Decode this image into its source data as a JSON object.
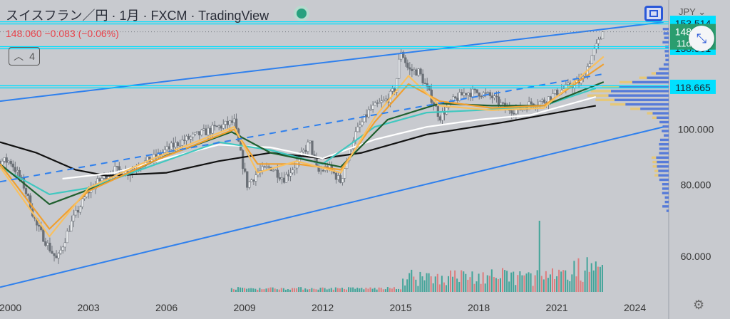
{
  "header": {
    "symbol_title": "スイスフラン／円 · 1月 · FXCM · TradingView",
    "change_text": "148.060  −0.083 (−0.06%)",
    "collapse_count": "4",
    "currency_label": "JPY"
  },
  "icons": {
    "fullscreen": "fullscreen-icon",
    "minimize": "minimize-arrows-icon",
    "settings": "gear-icon",
    "chevron": "chevron-down-icon"
  },
  "colors": {
    "background": "#c8cacf",
    "up_candle": "#6b7077",
    "channel": "#2f80ed",
    "hline": "#00e0ff",
    "price_tag": "#2a9d6f",
    "ma_orange": "#f0a030",
    "ma_lightorange": "#f8c060",
    "ma_darkgreen": "#1f5f2e",
    "ma_teal": "#40c8c0",
    "ma_white": "#ffffff",
    "ma_black": "#111111",
    "volume_up": "#2a9d8f",
    "volume_down": "#e07070",
    "profile": "#4a72d8",
    "profile_alt": "#e8c870"
  },
  "chart_data": {
    "type": "candlestick",
    "y_scale": "log",
    "ylim": [
      52,
      158
    ],
    "xlim": [
      1999.6,
      2025.3
    ],
    "x_ticks": [
      "2000",
      "2003",
      "2006",
      "2009",
      "2012",
      "2015",
      "2018",
      "2021",
      "2024"
    ],
    "y_ticks": [
      "60.000",
      "80.000",
      "100.000"
    ],
    "horizontal_levels": [
      {
        "value": 153.5,
        "label": "153.514"
      },
      {
        "value": 138.901,
        "label": "138.901"
      },
      {
        "value": 118.665,
        "label": "118.665"
      }
    ],
    "last_price": {
      "value": 148.06,
      "label": "148.060",
      "countdown": "11d 15h"
    },
    "channel": {
      "upper": [
        [
          1999.6,
          112
        ],
        [
          2025.1,
          154
        ]
      ],
      "lower": [
        [
          1999.6,
          53
        ],
        [
          2025.1,
          101
        ]
      ],
      "mid_dashed": [
        [
          1999.6,
          81
        ],
        [
          2022.8,
          125
        ]
      ]
    },
    "close_path": [
      [
        2000.0,
        88
      ],
      [
        2000.5,
        80
      ],
      [
        2001.0,
        68
      ],
      [
        2001.5,
        62
      ],
      [
        2001.8,
        59
      ],
      [
        2002.3,
        68
      ],
      [
        2003.0,
        78
      ],
      [
        2003.5,
        82
      ],
      [
        2004.0,
        85
      ],
      [
        2004.5,
        84
      ],
      [
        2005.0,
        87
      ],
      [
        2005.5,
        89
      ],
      [
        2006.0,
        92
      ],
      [
        2006.5,
        95
      ],
      [
        2007.0,
        97
      ],
      [
        2007.5,
        99
      ],
      [
        2008.0,
        101
      ],
      [
        2008.6,
        103
      ],
      [
        2008.9,
        88
      ],
      [
        2009.1,
        80
      ],
      [
        2009.5,
        84
      ],
      [
        2010.0,
        86
      ],
      [
        2010.5,
        82
      ],
      [
        2011.0,
        87
      ],
      [
        2011.5,
        95
      ],
      [
        2011.8,
        84
      ],
      [
        2012.2,
        86
      ],
      [
        2012.7,
        81
      ],
      [
        2013.2,
        97
      ],
      [
        2013.8,
        108
      ],
      [
        2014.5,
        113
      ],
      [
        2014.8,
        118
      ],
      [
        2015.0,
        138
      ],
      [
        2015.3,
        127
      ],
      [
        2015.7,
        126
      ],
      [
        2016.0,
        118
      ],
      [
        2016.5,
        105
      ],
      [
        2017.0,
        112
      ],
      [
        2017.5,
        116
      ],
      [
        2018.0,
        116
      ],
      [
        2018.5,
        114
      ],
      [
        2019.0,
        109
      ],
      [
        2019.5,
        108
      ],
      [
        2020.0,
        111
      ],
      [
        2020.5,
        112
      ],
      [
        2021.0,
        116
      ],
      [
        2021.5,
        119
      ],
      [
        2022.0,
        122
      ],
      [
        2022.3,
        133
      ],
      [
        2022.6,
        142
      ],
      [
        2022.8,
        148
      ]
    ],
    "moving_averages": [
      {
        "color_key": "ma_black",
        "points": [
          [
            1999.6,
            95
          ],
          [
            2001,
            91
          ],
          [
            2002.5,
            85
          ],
          [
            2003.7,
            83
          ],
          [
            2006,
            84
          ],
          [
            2008,
            88
          ],
          [
            2010,
            91
          ],
          [
            2012,
            89
          ],
          [
            2013.5,
            91
          ],
          [
            2016,
            98
          ],
          [
            2019,
            103
          ],
          [
            2022.5,
            110
          ]
        ]
      },
      {
        "color_key": "ma_white",
        "points": [
          [
            2002,
            82
          ],
          [
            2004,
            84
          ],
          [
            2006,
            89
          ],
          [
            2008,
            94
          ],
          [
            2010,
            93
          ],
          [
            2012,
            89
          ],
          [
            2014,
            96
          ],
          [
            2016,
            101
          ],
          [
            2018,
            104
          ],
          [
            2020,
            106
          ],
          [
            2022.5,
            114
          ]
        ]
      },
      {
        "color_key": "ma_teal",
        "points": [
          [
            1999.6,
            86
          ],
          [
            2001.5,
            77
          ],
          [
            2003,
            79
          ],
          [
            2005,
            85
          ],
          [
            2008,
            95
          ],
          [
            2010,
            92
          ],
          [
            2012,
            87
          ],
          [
            2014,
            101
          ],
          [
            2016,
            107
          ],
          [
            2018,
            108
          ],
          [
            2020.5,
            110
          ],
          [
            2022.5,
            118
          ]
        ]
      },
      {
        "color_key": "ma_darkgreen",
        "points": [
          [
            1999.6,
            87
          ],
          [
            2001.5,
            74
          ],
          [
            2003.5,
            80
          ],
          [
            2006,
            90
          ],
          [
            2008.5,
            99
          ],
          [
            2010,
            91
          ],
          [
            2012.7,
            86
          ],
          [
            2014.5,
            104
          ],
          [
            2016.5,
            111
          ],
          [
            2018.5,
            110
          ],
          [
            2020.5,
            110
          ],
          [
            2022.8,
            121
          ]
        ]
      },
      {
        "color_key": "ma_orange",
        "points": [
          [
            1999.6,
            87
          ],
          [
            2001.5,
            67
          ],
          [
            2003,
            78
          ],
          [
            2005.5,
            88
          ],
          [
            2008.6,
            100
          ],
          [
            2009.5,
            87
          ],
          [
            2011,
            87
          ],
          [
            2012.7,
            85
          ],
          [
            2014,
            103
          ],
          [
            2015.3,
            120
          ],
          [
            2016.5,
            112
          ],
          [
            2018.5,
            109
          ],
          [
            2020.5,
            110
          ],
          [
            2022.8,
            130
          ]
        ]
      },
      {
        "color_key": "ma_lightorange",
        "points": [
          [
            1999.6,
            86
          ],
          [
            2001.5,
            65
          ],
          [
            2003,
            79
          ],
          [
            2005.5,
            89
          ],
          [
            2008.6,
            101
          ],
          [
            2009.5,
            84
          ],
          [
            2011,
            88
          ],
          [
            2012.7,
            84
          ],
          [
            2014,
            105
          ],
          [
            2015.3,
            124
          ],
          [
            2016.5,
            110
          ],
          [
            2018.5,
            108
          ],
          [
            2020.5,
            109
          ],
          [
            2022.8,
            134
          ]
        ]
      }
    ]
  }
}
